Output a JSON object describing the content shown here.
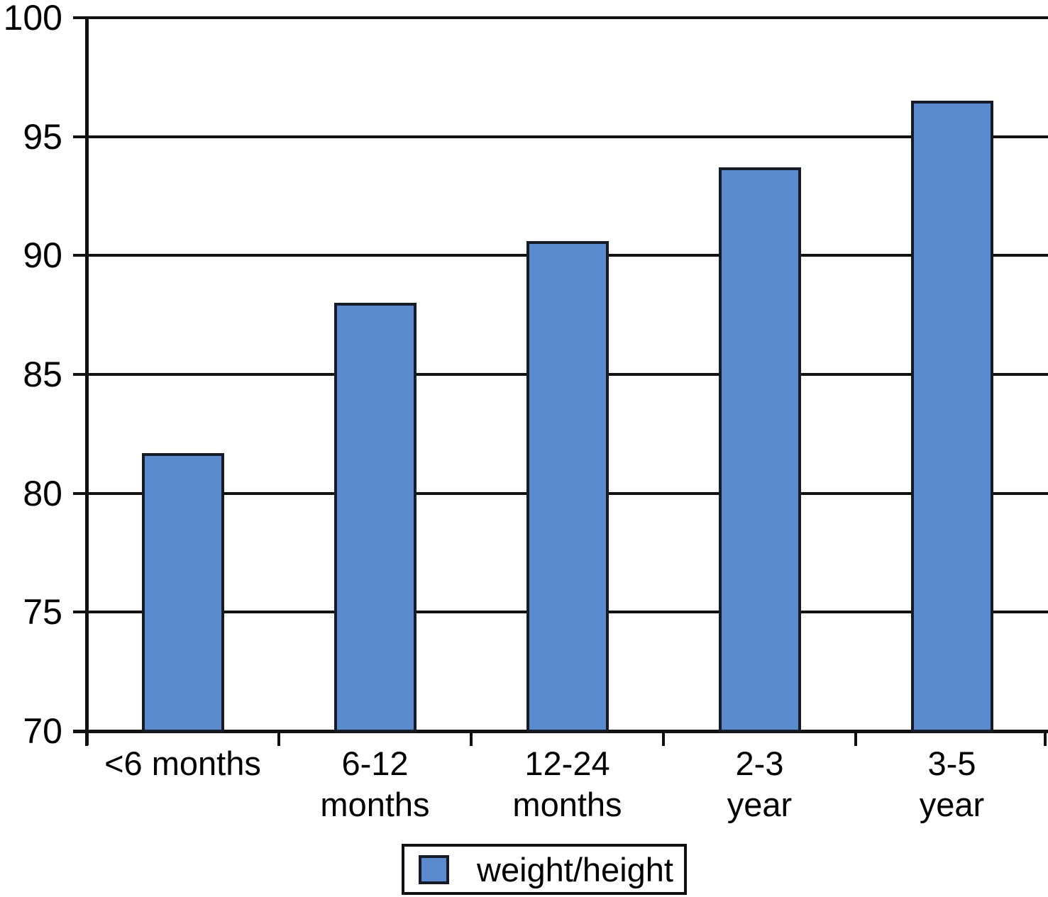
{
  "chart_data": {
    "type": "bar",
    "title": "",
    "xlabel": "",
    "ylabel": "",
    "categories": [
      "<6 months",
      "6-12\nmonths",
      "12-24\nmonths",
      "2-3\nyear",
      "3-5\nyear"
    ],
    "values": [
      81.7,
      88.0,
      90.6,
      93.7,
      96.5
    ],
    "series": [
      {
        "name": "weight/height",
        "values": [
          81.7,
          88.0,
          90.6,
          93.7,
          96.5
        ]
      }
    ],
    "ylim": [
      70,
      100
    ],
    "yticks": [
      100,
      95,
      90,
      85,
      80,
      75,
      70
    ],
    "grid": true,
    "legend_position": "bottom",
    "colors": {
      "bar_fill": "#5b8bce",
      "bar_border": "#151c28",
      "line": "#111111",
      "text": "#000000",
      "background": "#ffffff"
    }
  }
}
